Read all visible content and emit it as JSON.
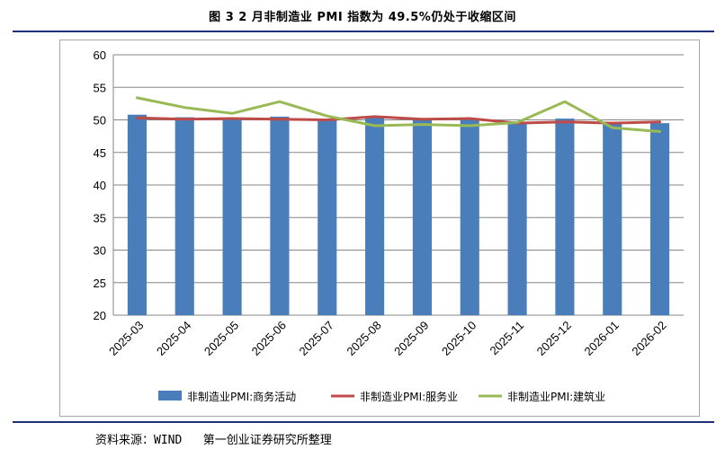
{
  "figure": {
    "title": "图 3  2 月非制造业 PMI 指数为 49.5%仍处于收缩区间",
    "source": "资料来源：WIND   第一创业证券研究所整理"
  },
  "colors": {
    "bar": "#4a7ebb",
    "service_line": "#be4b48",
    "construction_line": "#98b954",
    "gridline": "#868686",
    "rule": "#1f2f7a"
  },
  "chart_data": {
    "type": "bar",
    "title": "",
    "xlabel": "",
    "ylabel": "",
    "ylim": [
      20,
      60
    ],
    "yticks": [
      20,
      25,
      30,
      35,
      40,
      45,
      50,
      55,
      60
    ],
    "grid": true,
    "legend_position": "bottom",
    "categories": [
      "2025-03",
      "2025-04",
      "2025-05",
      "2025-06",
      "2025-07",
      "2025-08",
      "2025-09",
      "2025-10",
      "2025-11",
      "2025-12",
      "2026-01",
      "2026-02"
    ],
    "series": [
      {
        "name": "非制造业PMI:商务活动",
        "type": "bar",
        "values": [
          50.8,
          50.4,
          50.3,
          50.5,
          50.1,
          50.3,
          50.0,
          50.1,
          49.5,
          50.2,
          49.4,
          49.5
        ]
      },
      {
        "name": "非制造业PMI:服务业",
        "type": "line",
        "values": [
          50.3,
          50.1,
          50.2,
          50.1,
          50.0,
          50.5,
          50.1,
          50.2,
          49.5,
          49.7,
          49.5,
          49.7
        ]
      },
      {
        "name": "非制造业PMI:建筑业",
        "type": "line",
        "values": [
          53.4,
          51.9,
          51.0,
          52.8,
          50.6,
          49.1,
          49.3,
          49.1,
          49.6,
          52.8,
          48.8,
          48.2
        ]
      }
    ]
  }
}
